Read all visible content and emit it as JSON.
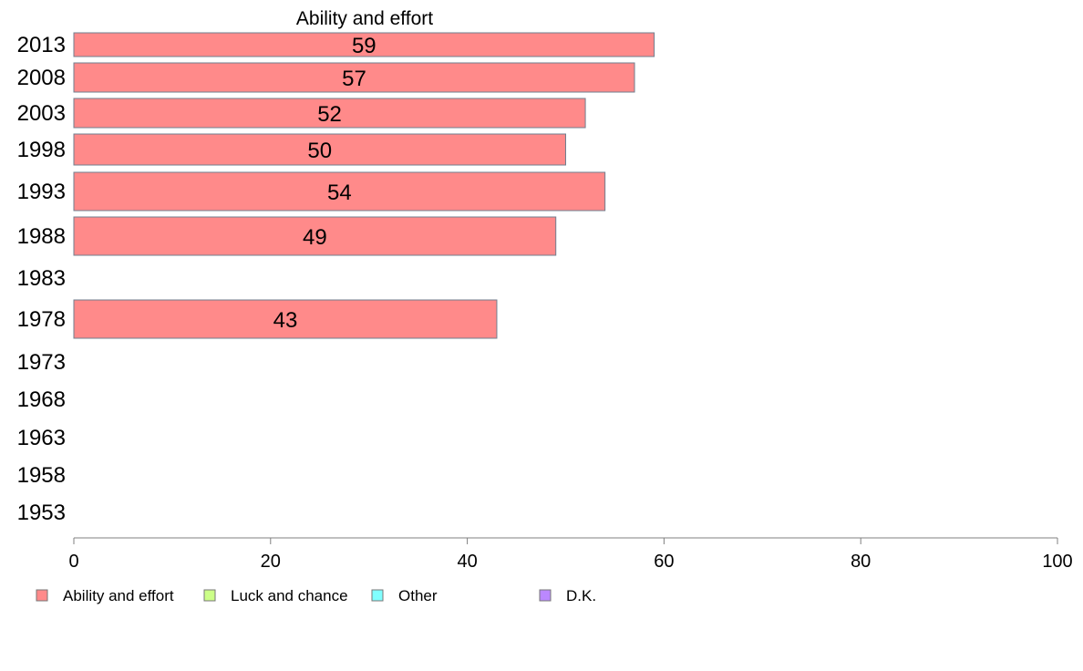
{
  "chart_data": {
    "type": "bar",
    "orientation": "horizontal",
    "title": "Ability and effort",
    "xlabel": "",
    "ylabel": "",
    "categories": [
      "2013",
      "2008",
      "2003",
      "1998",
      "1993",
      "1988",
      "1983",
      "1978",
      "1973",
      "1968",
      "1963",
      "1958",
      "1953"
    ],
    "series": [
      {
        "name": "Ability and effort",
        "color": "#ff8a8a",
        "values": [
          59,
          57,
          52,
          50,
          54,
          49,
          null,
          43,
          null,
          null,
          null,
          null,
          null
        ],
        "labels": [
          "59",
          "57",
          "52",
          "50",
          "54",
          "49",
          "",
          "43",
          "",
          "",
          "",
          "",
          ""
        ]
      }
    ],
    "xlim": [
      0,
      100
    ],
    "xticks": [
      "0",
      "20",
      "40",
      "60",
      "80",
      "100"
    ],
    "grid": false,
    "legend": {
      "position": "bottom-left",
      "items": [
        {
          "label": "Ability and effort",
          "color": "#ff8a8a"
        },
        {
          "label": "Luck and chance",
          "color": "#ccff88"
        },
        {
          "label": "Other",
          "color": "#80ffff"
        },
        {
          "label": "D.K.",
          "color": "#bb88ff"
        }
      ]
    }
  }
}
